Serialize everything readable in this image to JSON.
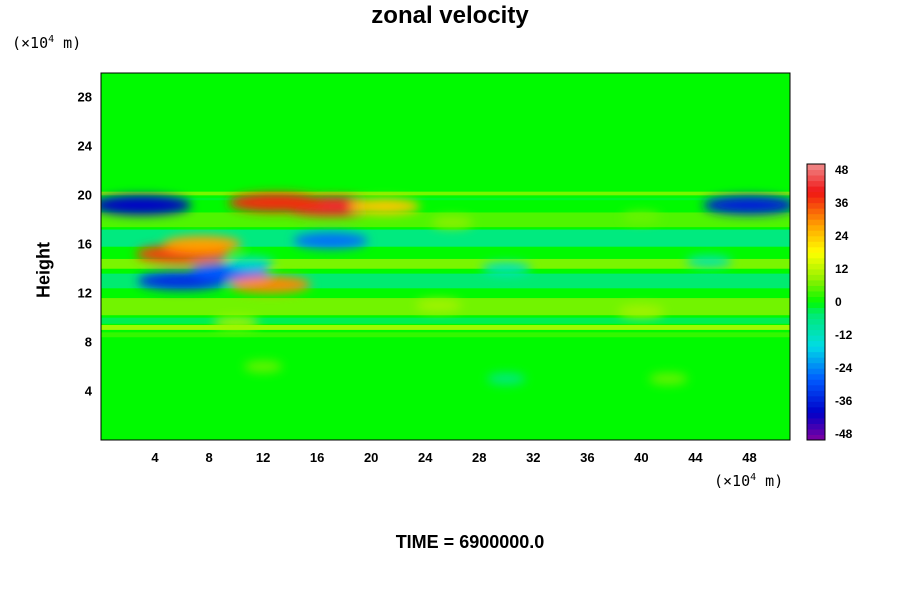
{
  "chart_data": {
    "type": "heatmap",
    "title": "zonal velocity",
    "ylabel": "Height",
    "xlabel": "",
    "x_unit": [
      "(×10",
      "4",
      " m)"
    ],
    "y_unit": [
      "(×10",
      "4",
      " m)"
    ],
    "xlim": [
      0,
      51
    ],
    "ylim": [
      0,
      30
    ],
    "x_ticks": [
      "4",
      "8",
      "12",
      "16",
      "20",
      "24",
      "28",
      "32",
      "36",
      "40",
      "44",
      "48"
    ],
    "y_ticks": [
      "4",
      "8",
      "12",
      "16",
      "20",
      "24",
      "28"
    ],
    "colorbar": {
      "range": [
        -50,
        50
      ],
      "ticks": [
        "48",
        "36",
        "24",
        "12",
        "0",
        "-12",
        "-24",
        "-36",
        "-48"
      ]
    },
    "features": [
      {
        "x": 3,
        "y": 19.2,
        "value": -40
      },
      {
        "x": 48,
        "y": 19.2,
        "value": -36
      },
      {
        "x": 17,
        "y": 19.1,
        "value": 42
      },
      {
        "x": 13,
        "y": 19.4,
        "value": 38
      },
      {
        "x": 21,
        "y": 19.1,
        "value": 24
      },
      {
        "x": 6,
        "y": 15.2,
        "value": 36
      },
      {
        "x": 7.5,
        "y": 16,
        "value": 28
      },
      {
        "x": 6,
        "y": 13,
        "value": -34
      },
      {
        "x": 9.5,
        "y": 13.8,
        "value": -28
      },
      {
        "x": 12.5,
        "y": 12.7,
        "value": 30
      },
      {
        "x": 17,
        "y": 16.3,
        "value": -26
      },
      {
        "x": 11,
        "y": 14.5,
        "value": -12
      },
      {
        "x": 26,
        "y": 17.8,
        "value": 8
      },
      {
        "x": 40,
        "y": 18.2,
        "value": 6
      },
      {
        "x": 30,
        "y": 14,
        "value": -12
      },
      {
        "x": 45,
        "y": 14.6,
        "value": -10
      },
      {
        "x": 25,
        "y": 11,
        "value": 10
      },
      {
        "x": 40,
        "y": 10.5,
        "value": 10
      },
      {
        "x": 10,
        "y": 9.6,
        "value": 10
      },
      {
        "x": 12,
        "y": 6,
        "value": 6
      },
      {
        "x": 30,
        "y": 5,
        "value": -6
      },
      {
        "x": 42,
        "y": 5,
        "value": 6
      }
    ]
  },
  "footer": {
    "time_label": "TIME = 6900000.0"
  }
}
